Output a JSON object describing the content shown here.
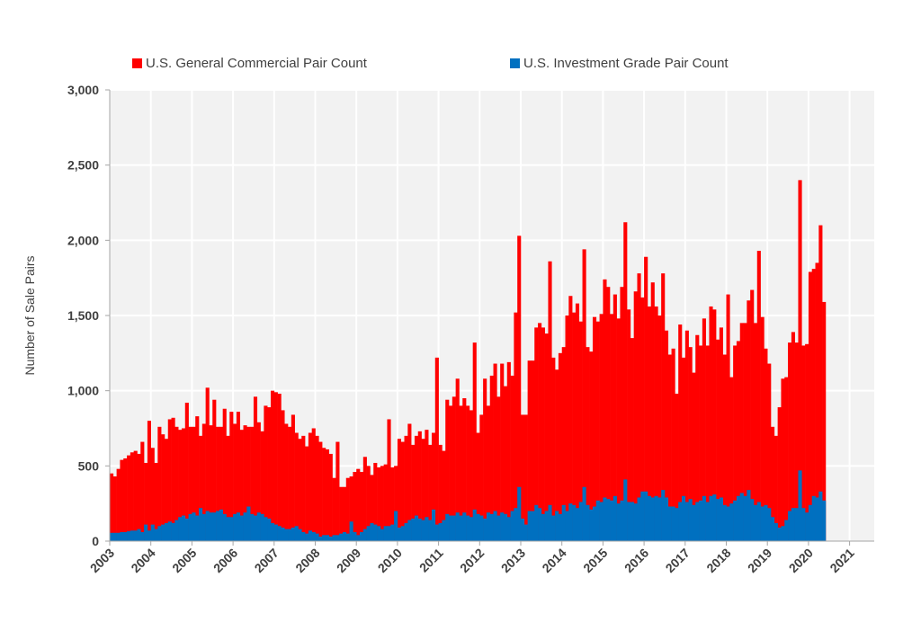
{
  "chart_data": {
    "type": "bar",
    "stacking": "overlay",
    "frequency": "monthly",
    "start": "2003-01",
    "end": "2021-07",
    "title": "",
    "xlabel": "",
    "ylabel": "Number of Sale Pairs",
    "ylim": [
      0,
      3000
    ],
    "yticks": [
      "0",
      "500",
      "1,000",
      "1,500",
      "2,000",
      "2,500",
      "3,000"
    ],
    "ytick_values": [
      0,
      500,
      1000,
      1500,
      2000,
      2500,
      3000
    ],
    "xticks": [
      "2003",
      "2004",
      "2005",
      "2006",
      "2007",
      "2008",
      "2009",
      "2010",
      "2011",
      "2012",
      "2013",
      "2014",
      "2015",
      "2016",
      "2017",
      "2018",
      "2019",
      "2020",
      "2021"
    ],
    "grid": true,
    "legend_position": "top",
    "series": [
      {
        "name": "U.S. General Commercial Pair Count",
        "color": "#ff0000",
        "values": [
          450,
          430,
          480,
          540,
          550,
          570,
          590,
          600,
          580,
          660,
          520,
          800,
          620,
          520,
          760,
          710,
          680,
          810,
          820,
          760,
          740,
          750,
          920,
          760,
          760,
          830,
          700,
          780,
          1020,
          770,
          940,
          760,
          760,
          880,
          700,
          860,
          780,
          860,
          740,
          770,
          760,
          760,
          960,
          790,
          730,
          900,
          890,
          1000,
          990,
          980,
          870,
          780,
          760,
          840,
          720,
          680,
          700,
          630,
          720,
          750,
          700,
          660,
          620,
          610,
          580,
          420,
          660,
          360,
          360,
          420,
          430,
          460,
          480,
          460,
          560,
          500,
          440,
          520,
          490,
          500,
          510,
          810,
          490,
          500,
          680,
          660,
          700,
          780,
          640,
          700,
          730,
          680,
          740,
          640,
          720,
          1220,
          640,
          600,
          940,
          900,
          960,
          1080,
          900,
          950,
          900,
          870,
          1320,
          720,
          840,
          1080,
          900,
          1100,
          1180,
          960,
          1180,
          1030,
          1190,
          1100,
          1520,
          2030,
          840,
          840,
          1200,
          1200,
          1420,
          1450,
          1420,
          1380,
          1860,
          1220,
          1140,
          1250,
          1290,
          1500,
          1630,
          1520,
          1580,
          1460,
          1940,
          1290,
          1260,
          1490,
          1460,
          1510,
          1740,
          1690,
          1510,
          1640,
          1480,
          1690,
          2120,
          1540,
          1350,
          1660,
          1780,
          1620,
          1890,
          1560,
          1720,
          1560,
          1500,
          1780,
          1400,
          1240,
          1280,
          980,
          1440,
          1220,
          1400,
          1290,
          1120,
          1370,
          1300,
          1480,
          1300,
          1560,
          1540,
          1340,
          1420,
          1240,
          1640,
          1090,
          1300,
          1330,
          1450,
          1450,
          1600,
          1670,
          1450,
          1930,
          1490,
          1280,
          1180,
          760,
          700,
          890,
          1080,
          1090,
          1320,
          1390,
          1320,
          2400,
          1300,
          1310,
          1790,
          1810,
          1850,
          2100,
          1590
        ]
      },
      {
        "name": "U.S. Investment Grade Pair Count",
        "color": "#0070c0",
        "values": [
          55,
          55,
          55,
          60,
          60,
          65,
          70,
          70,
          80,
          60,
          110,
          70,
          110,
          80,
          100,
          110,
          120,
          130,
          120,
          140,
          160,
          170,
          150,
          180,
          190,
          170,
          220,
          180,
          200,
          190,
          190,
          200,
          210,
          180,
          160,
          160,
          180,
          190,
          170,
          190,
          230,
          180,
          170,
          190,
          180,
          160,
          150,
          120,
          110,
          100,
          90,
          80,
          80,
          90,
          100,
          80,
          60,
          50,
          70,
          60,
          50,
          30,
          40,
          40,
          30,
          40,
          40,
          50,
          60,
          50,
          130,
          60,
          40,
          60,
          80,
          100,
          120,
          110,
          100,
          80,
          100,
          100,
          110,
          200,
          90,
          100,
          120,
          140,
          150,
          170,
          150,
          140,
          160,
          140,
          210,
          110,
          120,
          140,
          180,
          170,
          170,
          190,
          170,
          190,
          170,
          160,
          210,
          180,
          170,
          150,
          190,
          180,
          200,
          170,
          190,
          180,
          160,
          200,
          220,
          360,
          150,
          110,
          200,
          200,
          240,
          220,
          180,
          200,
          240,
          170,
          200,
          180,
          240,
          200,
          250,
          240,
          220,
          260,
          360,
          240,
          210,
          230,
          270,
          260,
          290,
          280,
          270,
          300,
          250,
          270,
          410,
          260,
          260,
          250,
          290,
          330,
          330,
          300,
          290,
          300,
          290,
          340,
          290,
          230,
          230,
          220,
          260,
          300,
          260,
          280,
          240,
          260,
          270,
          300,
          260,
          300,
          310,
          280,
          290,
          240,
          230,
          250,
          270,
          300,
          320,
          300,
          340,
          280,
          240,
          260,
          230,
          240,
          220,
          160,
          120,
          90,
          100,
          140,
          200,
          220,
          220,
          470,
          220,
          190,
          240,
          300,
          290,
          330,
          270
        ]
      }
    ]
  }
}
